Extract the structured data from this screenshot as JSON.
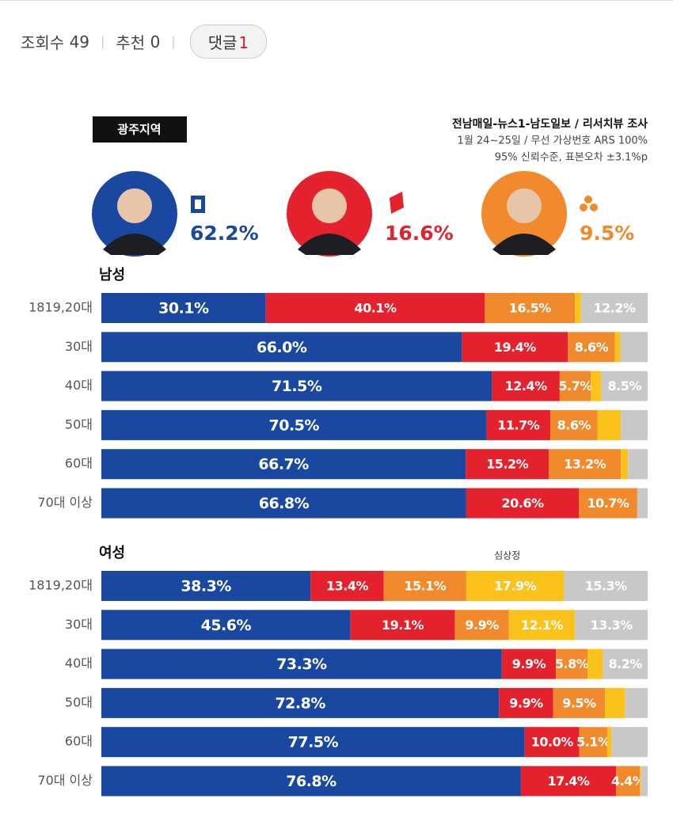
{
  "page": {
    "stats": [
      {
        "label": "조회수",
        "value": 49
      },
      {
        "label": "추천",
        "value": 0
      }
    ],
    "comments": {
      "label": "댓글",
      "value": 1
    }
  },
  "poll": {
    "region": "광주지역",
    "source": [
      "전남매일-뉴스1-남도일보 / 리서치뷰 조사",
      "1월 24~25일 / 무선 가상번호 ARS 100%",
      "95% 신뢰수준, 표본오차 ±3.1%p"
    ],
    "candidates": [
      {
        "color": "#1a48a0",
        "value": 62.2,
        "label": "62.2%"
      },
      {
        "color": "#e4222e",
        "value": 16.6,
        "label": "16.6%"
      },
      {
        "color": "#f08a2c",
        "value": 9.5,
        "label": "9.5%"
      }
    ]
  },
  "chart_data": [
    {
      "type": "bar",
      "orientation": "horizontal",
      "stacked": true,
      "title": "남성",
      "xlim": [
        0,
        100
      ],
      "categories": [
        "1819,20대",
        "30대",
        "40대",
        "50대",
        "60대",
        "70대 이상"
      ],
      "series": [
        {
          "color": "#1a48a0",
          "values": [
            30.1,
            66.0,
            71.5,
            70.5,
            66.7,
            66.8
          ],
          "value_labels": [
            "30.1%",
            "66.0%",
            "71.5%",
            "70.5%",
            "66.7%",
            "66.8%"
          ]
        },
        {
          "color": "#e4222e",
          "values": [
            40.1,
            19.4,
            12.4,
            11.7,
            15.2,
            20.6
          ],
          "value_labels": [
            "40.1%",
            "19.4%",
            "12.4%",
            "11.7%",
            "15.2%",
            "20.6%"
          ]
        },
        {
          "color": "#f08a2c",
          "values": [
            16.5,
            8.6,
            5.7,
            8.6,
            13.2,
            10.7
          ],
          "value_labels": [
            "16.5%",
            "8.6%",
            "5.7%",
            "8.6%",
            "13.2%",
            "10.7%"
          ]
        },
        {
          "color": "#fbc21b",
          "values": [
            1.1,
            1.0,
            1.9,
            4.3,
            1.3,
            0
          ],
          "value_labels": [
            null,
            null,
            null,
            null,
            null,
            null
          ]
        },
        {
          "color": "#c8c8c8",
          "values": [
            12.2,
            5.0,
            8.5,
            4.9,
            3.6,
            1.9
          ],
          "value_labels": [
            "12.2%",
            null,
            "8.5%",
            null,
            null,
            null
          ]
        }
      ]
    },
    {
      "type": "bar",
      "orientation": "horizontal",
      "stacked": true,
      "title": "여성",
      "xlim": [
        0,
        100
      ],
      "categories": [
        "1819,20대",
        "30대",
        "40대",
        "50대",
        "60대",
        "70대 이상"
      ],
      "series": [
        {
          "color": "#1a48a0",
          "values": [
            38.3,
            45.6,
            73.3,
            72.8,
            77.5,
            76.8
          ],
          "value_labels": [
            "38.3%",
            "45.6%",
            "73.3%",
            "72.8%",
            "77.5%",
            "76.8%"
          ]
        },
        {
          "color": "#e4222e",
          "values": [
            13.4,
            19.1,
            9.9,
            9.9,
            10.0,
            17.4
          ],
          "value_labels": [
            "13.4%",
            "19.1%",
            "9.9%",
            "9.9%",
            "10.0%",
            "17.4%"
          ]
        },
        {
          "color": "#f08a2c",
          "values": [
            15.1,
            9.9,
            5.8,
            9.5,
            5.1,
            4.4
          ],
          "value_labels": [
            "15.1%",
            "9.9%",
            "5.8%",
            "9.5%",
            "5.1%",
            "4.4%"
          ]
        },
        {
          "name": "심상정",
          "color": "#fbc21b",
          "values": [
            17.9,
            12.1,
            2.8,
            3.7,
            0.8,
            0.2
          ],
          "value_labels": [
            "17.9%",
            "12.1%",
            null,
            null,
            null,
            null
          ]
        },
        {
          "color": "#c8c8c8",
          "values": [
            15.3,
            13.3,
            8.2,
            4.1,
            6.6,
            1.2
          ],
          "value_labels": [
            "15.3%",
            "13.3%",
            "8.2%",
            null,
            null,
            null
          ]
        }
      ]
    }
  ]
}
